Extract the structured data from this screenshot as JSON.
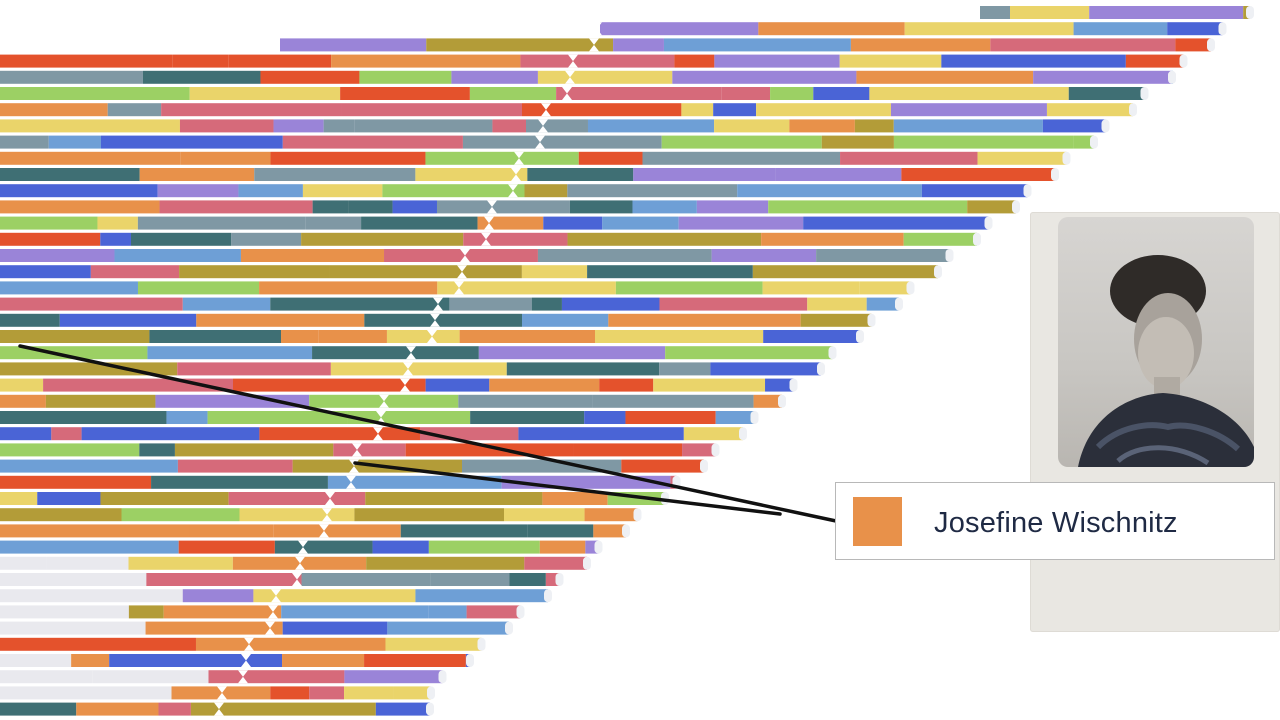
{
  "legend": {
    "person_name": "Josefine Wischnitz",
    "swatch_color": "#e8914a"
  },
  "colors": {
    "blue": "#4a64d6",
    "teal": "#3f6f74",
    "yellow": "#ead46a",
    "red": "#e4522c",
    "green": "#9cd064",
    "purple": "#9a84d8",
    "orange": "#e8914a",
    "sky": "#6e9fd6",
    "olive": "#b39c38",
    "rose": "#d66a7a",
    "grayblue": "#7f98a4",
    "pale": "#e9e9ee"
  },
  "photo": {
    "icon": "portrait-photo",
    "description_visible": false
  }
}
